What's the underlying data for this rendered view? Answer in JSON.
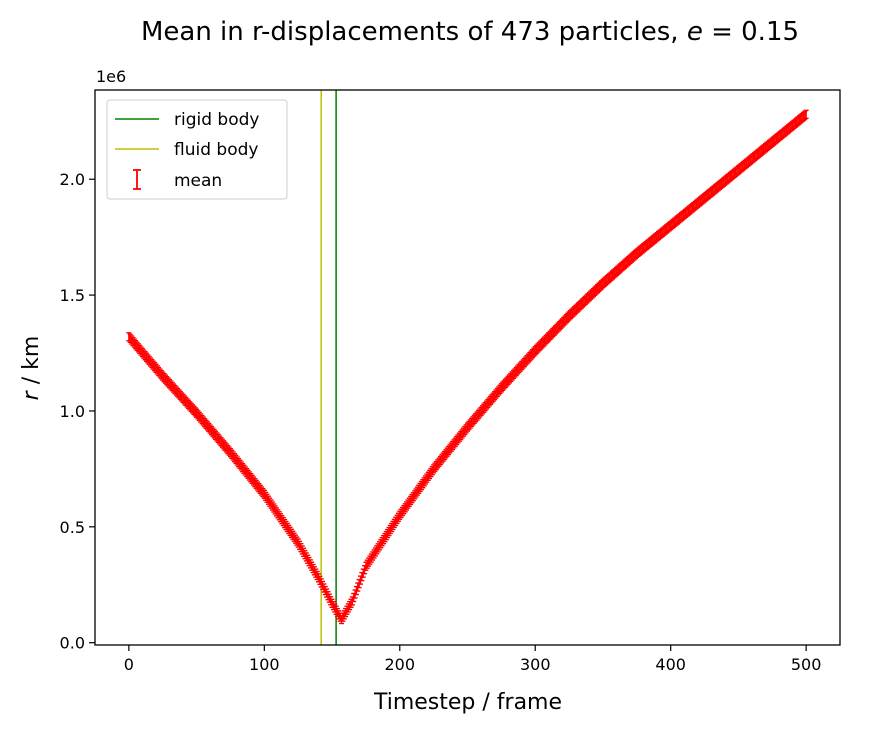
{
  "chart_data": {
    "type": "line",
    "title_text": "Mean in r-displacements of 473 particles, ",
    "title_symbol": "e",
    "title_rest": " =  0.15",
    "xlabel": "Timestep / frame",
    "ylabel_symbol": "r",
    "ylabel_rest": " / km",
    "y_offset_label": "1e6",
    "xlim": [
      -25,
      525
    ],
    "ylim": [
      -0.01,
      2.385
    ],
    "y_unit_scale": 1000000,
    "xticks": [
      0,
      100,
      200,
      300,
      400,
      500
    ],
    "xtick_labels": [
      "0",
      "100",
      "200",
      "300",
      "400",
      "500"
    ],
    "yticks": [
      0.0,
      0.5,
      1.0,
      1.5,
      2.0
    ],
    "ytick_labels": [
      "0.0",
      "0.5",
      "1.0",
      "1.5",
      "2.0"
    ],
    "grid": false,
    "legend_position": "top-left",
    "vlines": [
      {
        "name": "rigid body",
        "x": 153,
        "color": "#008000"
      },
      {
        "name": "fluid body",
        "x": 142,
        "color": "#bfbf00"
      }
    ],
    "series": [
      {
        "name": "mean",
        "color": "#ff0000",
        "marker": "errorbar",
        "x_start": 0,
        "x_end": 500,
        "x_step": 1,
        "knots_x": [
          0,
          25,
          50,
          75,
          100,
          125,
          140,
          150,
          157,
          165,
          175,
          200,
          225,
          250,
          275,
          300,
          325,
          350,
          375,
          400,
          425,
          450,
          475,
          500
        ],
        "knots_y": [
          1.32,
          1.15,
          0.99,
          0.82,
          0.64,
          0.43,
          0.28,
          0.17,
          0.1,
          0.18,
          0.33,
          0.55,
          0.75,
          0.93,
          1.1,
          1.26,
          1.41,
          1.55,
          1.68,
          1.8,
          1.92,
          2.04,
          2.16,
          2.28
        ]
      }
    ]
  }
}
